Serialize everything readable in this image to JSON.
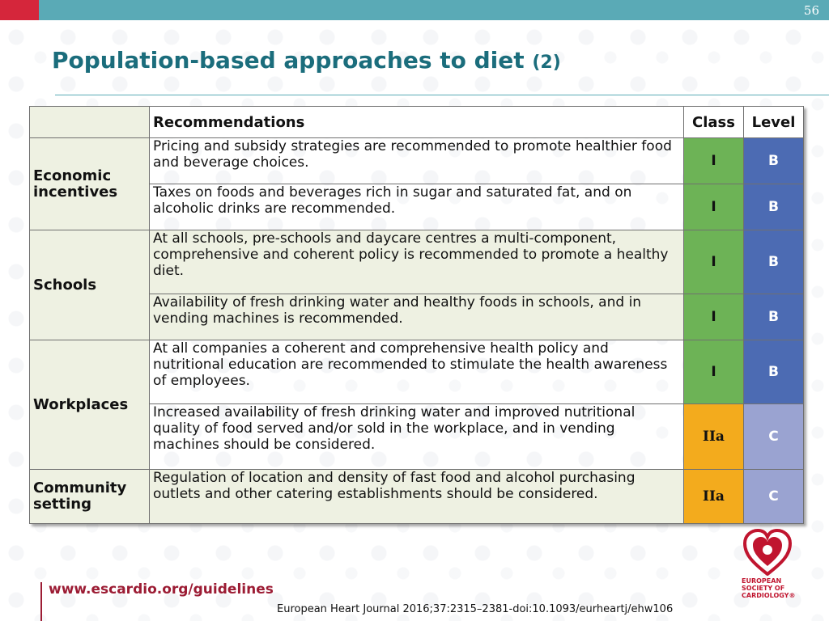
{
  "slide_number": "56",
  "title": {
    "main": "Population-based approaches to diet",
    "suffix": "(2)"
  },
  "table": {
    "headers": {
      "recommendations": "Recommendations",
      "class": "Class",
      "level": "Level"
    },
    "groups": [
      {
        "category": "Economic incentives",
        "rows": [
          {
            "text": "Pricing and subsidy strategies are recommended to promote healthier food and beverage choices.",
            "class": "I",
            "level": "B"
          },
          {
            "text": "Taxes on foods and beverages rich in sugar and saturated fat, and on alcoholic drinks are recommended.",
            "class": "I",
            "level": "B"
          }
        ]
      },
      {
        "category": "Schools",
        "rows": [
          {
            "text": "At all schools, pre-schools and daycare centres a multi-component, comprehensive and coherent policy is recommended to promote a healthy diet.",
            "class": "I",
            "level": "B"
          },
          {
            "text": "Availability of fresh drinking water and healthy foods in schools, and in vending machines is recommended.",
            "class": "I",
            "level": "B"
          }
        ]
      },
      {
        "category": "Workplaces",
        "rows": [
          {
            "text": "At all companies a coherent and comprehensive health policy and nutritional education are recommended to stimulate the health awareness of employees.",
            "class": "I",
            "level": "B"
          },
          {
            "text": "Increased availability of fresh drinking water and improved nutritional quality of food served and/or sold in the workplace, and in vending machines should be considered.",
            "class": "IIa",
            "level": "C"
          }
        ]
      },
      {
        "category": "Community setting",
        "rows": [
          {
            "text": "Regulation of location and density of fast food and alcohol purchasing outlets and other catering establishments should be considered.",
            "class": "IIa",
            "level": "C"
          }
        ]
      }
    ]
  },
  "footer": {
    "url": "www.escardio.org/guidelines",
    "citation": "European Heart Journal 2016;37:2315–2381-doi:10.1093/eurheartj/ehw106"
  },
  "logo": {
    "text": "EUROPEAN SOCIETY OF CARDIOLOGY®"
  },
  "colors": {
    "header_bar": "#5aaab6",
    "accent_red": "#d5263b",
    "title": "#1b6d7c",
    "class_I": "#6db356",
    "class_IIa": "#f3ab1d",
    "level_B": "#4c6bb3",
    "level_C": "#9aa3d1"
  }
}
